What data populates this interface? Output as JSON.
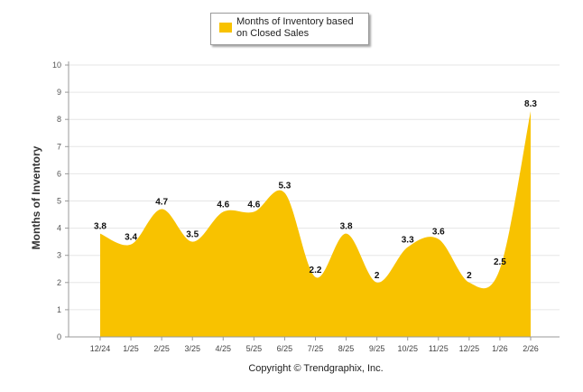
{
  "chart_data": {
    "type": "area",
    "title": "",
    "legend": {
      "entries": [
        "Months of Inventory based\non Closed Sales"
      ],
      "placement": "top-center"
    },
    "ylabel": "Months of Inventory",
    "xlabel": "",
    "ylim": [
      0,
      10
    ],
    "yticks": [
      0,
      1,
      2,
      3,
      4,
      5,
      6,
      7,
      8,
      9,
      10
    ],
    "grid": true,
    "categories": [
      "12/24",
      "1/25",
      "2/25",
      "3/25",
      "4/25",
      "5/25",
      "6/25",
      "7/25",
      "8/25",
      "9/25",
      "10/25",
      "11/25",
      "12/25",
      "1/26",
      "2/26"
    ],
    "series": [
      {
        "name": "Months of Inventory based on Closed Sales",
        "values": [
          3.8,
          3.4,
          4.7,
          3.5,
          4.6,
          4.6,
          5.3,
          2.2,
          3.8,
          2,
          3.3,
          3.6,
          2,
          2.5,
          8.3
        ],
        "labels": [
          "3.8",
          "3.4",
          "4.7",
          "3.5",
          "4.6",
          "4.6",
          "5.3",
          "2.2",
          "3.8",
          "2",
          "3.3",
          "3.6",
          "2",
          "2.5",
          "8.3"
        ],
        "color": "#f8c200"
      }
    ],
    "footer": "Copyright © Trendgraphix, Inc."
  }
}
